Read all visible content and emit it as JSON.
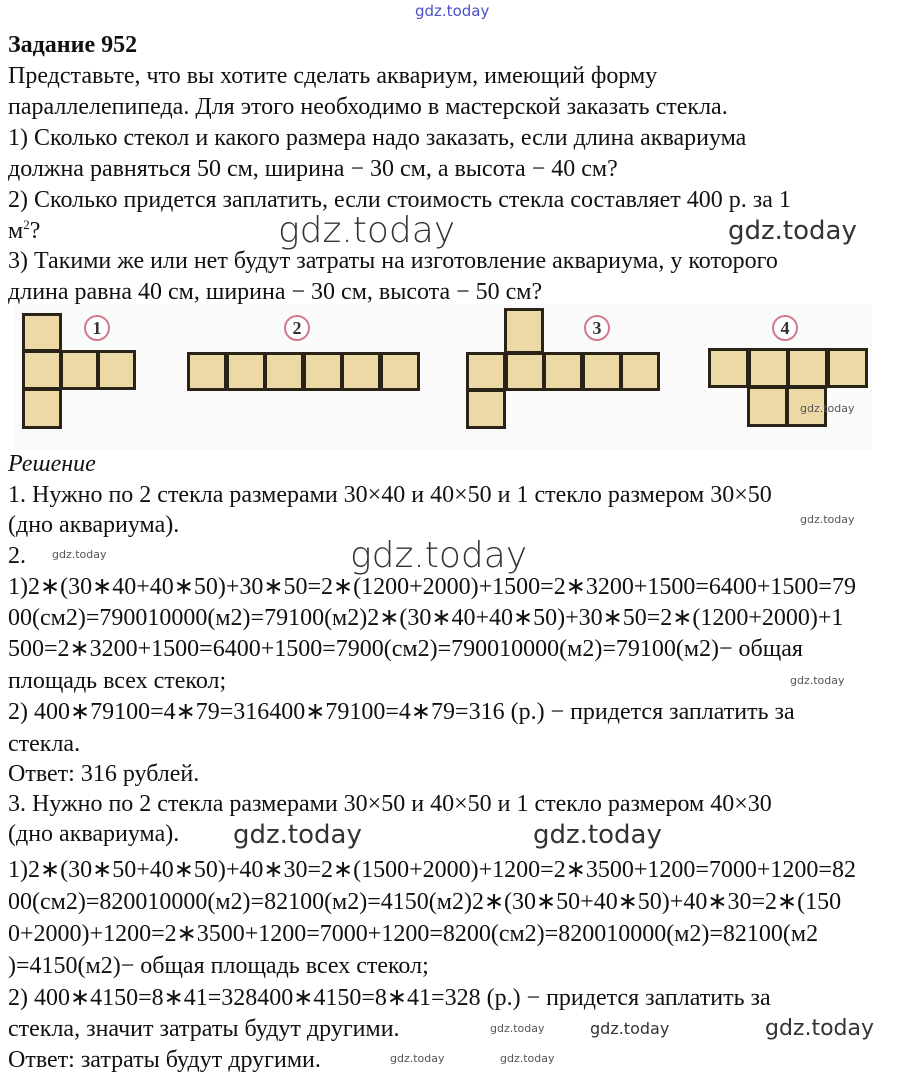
{
  "watermark_top": "gdz.today",
  "title": "Задание 952",
  "task_lines": [
    "Представьте, что вы хотите сделать аквариум, имеющий форму",
    "параллелепипеда. Для этого необходимо в мастерской заказать стекла.",
    "1) Сколько стекол и какого размера надо заказать, если длина аквариума",
    "должна равняться 50 см, ширина − 30 см, а высота − 40 см?",
    "2) Сколько придется заплатить, если стоимость стекла составляет 400 р. за 1",
    "м",
    "?",
    "3) Такими же или нет будут затраты на изготовление аквариума, у которого",
    "длина равна 40 см, ширина − 30 см, высота − 50 см?"
  ],
  "superscript": "2",
  "figure": {
    "labels": [
      "1",
      "2",
      "3",
      "4"
    ],
    "watermark": "gdz.today",
    "square_color": "#ecd9a6",
    "circle_color": "#d07a8a"
  },
  "solution_heading": "Решение",
  "solution_lines": [
    "1. Нужно по 2 стекла размерами 30×40 и 40×50 и 1 стекло размером 30×50",
    "(дно аквариума).",
    "2.",
    "1)2∗(30∗40+40∗50)+30∗50=2∗(1200+2000)+1500=2∗3200+1500=6400+1500=79",
    "00(см2)=790010000(м2)=79100(м2)2∗(30∗40+40∗50)+30∗50=2∗(1200+2000)+1",
    "500=2∗3200+1500=6400+1500=7900(см2)=790010000(м2)=79100(м2)− общая",
    "площадь всех стекол;",
    "2) 400∗79100=4∗79=316400∗79100=4∗79=316 (р.) − придется заплатить за",
    "стекла.",
    "Ответ: 316 рублей.",
    "3. Нужно по 2 стекла размерами 30×50 и 40×50 и 1 стекло размером 40×30",
    "(дно аквариума).",
    "1)2∗(30∗50+40∗50)+40∗30=2∗(1500+2000)+1200=2∗3500+1200=7000+1200=82",
    "00(см2)=820010000(м2)=82100(м2)=4150(м2)2∗(30∗50+40∗50)+40∗30=2∗(150",
    "0+2000)+1200=2∗3500+1200=7000+1200=8200(см2)=820010000(м2)=82100(м2",
    ")=4150(м2)− общая площадь всех стекол;",
    "2) 400∗4150=8∗41=328400∗4150=8∗41=328 (р.) − придется заплатить за",
    "стекла, значит затраты будут другими.",
    "Ответ: затраты будут другими."
  ],
  "watermarks": {
    "text": "gdz.today"
  }
}
